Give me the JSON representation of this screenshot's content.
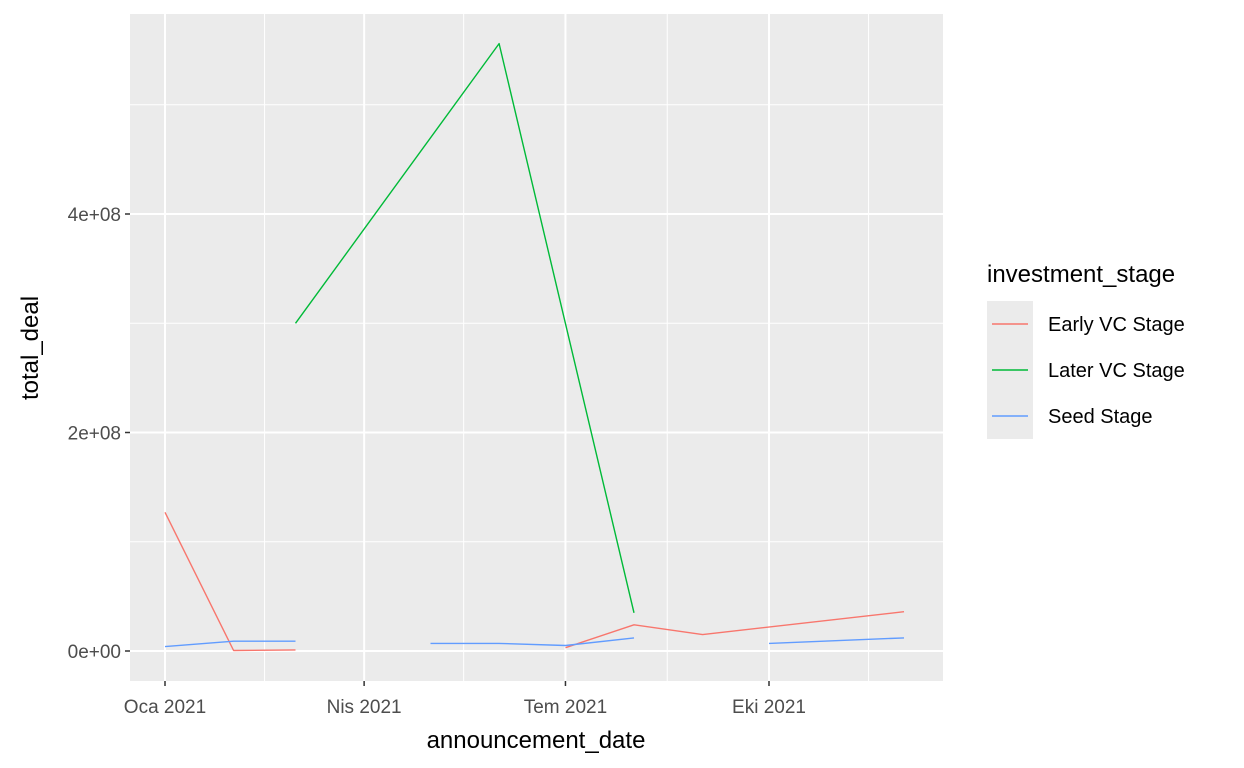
{
  "chart_data": {
    "type": "line",
    "title": "",
    "xlabel": "announcement_date",
    "ylabel": "total_deal",
    "x_ticks": [
      "Oca 2021",
      "Nis 2021",
      "Tem 2021",
      "Eki 2021"
    ],
    "y_ticks": [
      "0e+00",
      "2e+08",
      "4e+08"
    ],
    "ylim": [
      -25000000,
      585000000
    ],
    "legend_title": "investment_stage",
    "legend_position": "right",
    "colors": {
      "Early VC Stage": "#F8766D",
      "Later VC Stage": "#00BA38",
      "Seed Stage": "#619CFF",
      "panel_background": "#EBEBEB",
      "grid": "#FFFFFF"
    },
    "series": [
      {
        "name": "Early VC Stage",
        "segments": [
          [
            {
              "x": "2021-01-01",
              "y": 127000000
            },
            {
              "x": "2021-02-01",
              "y": 500000
            },
            {
              "x": "2021-03-01",
              "y": 1000000
            }
          ],
          [
            {
              "x": "2021-07-01",
              "y": 3000000
            },
            {
              "x": "2021-08-01",
              "y": 24000000
            },
            {
              "x": "2021-09-01",
              "y": 15000000
            },
            {
              "x": "2021-12-01",
              "y": 36000000
            }
          ]
        ]
      },
      {
        "name": "Later VC Stage",
        "segments": [
          [
            {
              "x": "2021-03-01",
              "y": 300000000
            },
            {
              "x": "2021-06-01",
              "y": 556000000
            },
            {
              "x": "2021-08-01",
              "y": 35000000
            }
          ]
        ]
      },
      {
        "name": "Seed Stage",
        "segments": [
          [
            {
              "x": "2021-01-01",
              "y": 4000000
            },
            {
              "x": "2021-02-01",
              "y": 9000000
            },
            {
              "x": "2021-03-01",
              "y": 9000000
            }
          ],
          [
            {
              "x": "2021-05-01",
              "y": 7000000
            },
            {
              "x": "2021-06-01",
              "y": 7000000
            },
            {
              "x": "2021-07-01",
              "y": 5000000
            },
            {
              "x": "2021-08-01",
              "y": 12000000
            }
          ],
          [
            {
              "x": "2021-10-01",
              "y": 7000000
            },
            {
              "x": "2021-12-01",
              "y": 12000000
            }
          ]
        ]
      }
    ]
  }
}
